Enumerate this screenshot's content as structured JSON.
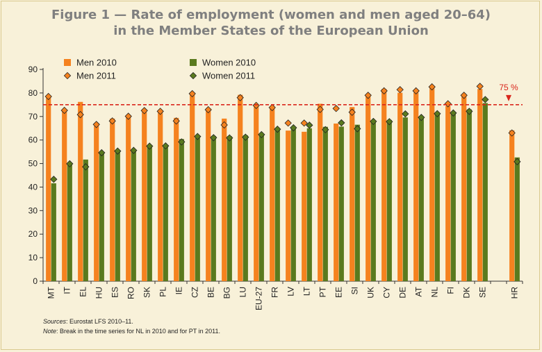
{
  "title_line1": "Figure 1 — Rate of employment (women and men aged 20–64)",
  "title_line2": "in the Member States of the European Union",
  "sources_label": "Sources",
  "sources_text": ": Eurostat LFS 2010–11.",
  "note_label": "Note",
  "note_text": ": Break in the time series for NL in 2010 and for PT in 2011.",
  "colors": {
    "men": "#f5821f",
    "women": "#5a7a1e",
    "target": "#d9261c",
    "background": "#f8f1d9"
  },
  "chart_data": {
    "type": "bar",
    "categories": [
      "MT",
      "IT",
      "EL",
      "HU",
      "ES",
      "RO",
      "SK",
      "PL",
      "IE",
      "CZ",
      "BE",
      "BG",
      "LU",
      "EU-27",
      "FR",
      "LV",
      "LT",
      "PT",
      "EE",
      "SI",
      "UK",
      "CY",
      "DE",
      "AT",
      "NL",
      "FI",
      "DK",
      "SE",
      "",
      "HR"
    ],
    "series": [
      {
        "name": "Men 2010",
        "kind": "bar",
        "values": [
          78.0,
          72.8,
          76.2,
          66.0,
          69.1,
          70.1,
          71.9,
          71.6,
          69.4,
          79.6,
          73.5,
          69.1,
          79.2,
          75.1,
          73.7,
          64.0,
          63.5,
          75.4,
          67.0,
          74.0,
          79.0,
          81.7,
          80.1,
          80.2,
          82.8,
          74.5,
          79.0,
          81.7,
          null,
          64.1
        ]
      },
      {
        "name": "Women 2010",
        "kind": "bar",
        "values": [
          41.6,
          49.5,
          51.7,
          55.0,
          55.8,
          55.9,
          57.4,
          57.6,
          60.4,
          60.9,
          61.7,
          61.6,
          62.0,
          62.1,
          64.9,
          64.9,
          65.0,
          65.6,
          65.7,
          66.5,
          67.9,
          68.5,
          69.6,
          69.6,
          70.8,
          71.5,
          73.0,
          75.7,
          null,
          52.6
        ]
      },
      {
        "name": "Men 2011",
        "kind": "marker",
        "values": [
          78.5,
          72.6,
          70.8,
          66.6,
          68.1,
          70.1,
          72.5,
          72.2,
          68.1,
          79.7,
          72.9,
          66.4,
          78.0,
          74.7,
          73.8,
          67.2,
          67.2,
          73.0,
          73.4,
          71.8,
          79.0,
          80.9,
          81.4,
          80.9,
          82.6,
          75.4,
          79.0,
          82.8,
          null,
          63.0
        ]
      },
      {
        "name": "Women 2011",
        "kind": "marker",
        "values": [
          43.3,
          49.9,
          48.6,
          54.6,
          55.3,
          55.6,
          57.4,
          57.5,
          59.2,
          61.5,
          61.0,
          60.9,
          61.2,
          62.3,
          64.6,
          65.2,
          66.3,
          64.4,
          67.3,
          64.8,
          67.9,
          67.8,
          71.1,
          69.6,
          71.2,
          71.5,
          72.2,
          77.2,
          null,
          50.8
        ]
      }
    ],
    "target": {
      "value": 75,
      "label": "75 %"
    },
    "ylim": [
      0,
      90
    ],
    "yticks": [
      0,
      10,
      20,
      30,
      40,
      50,
      60,
      70,
      80,
      90
    ],
    "grid": false,
    "legend": "top-left, two columns"
  }
}
